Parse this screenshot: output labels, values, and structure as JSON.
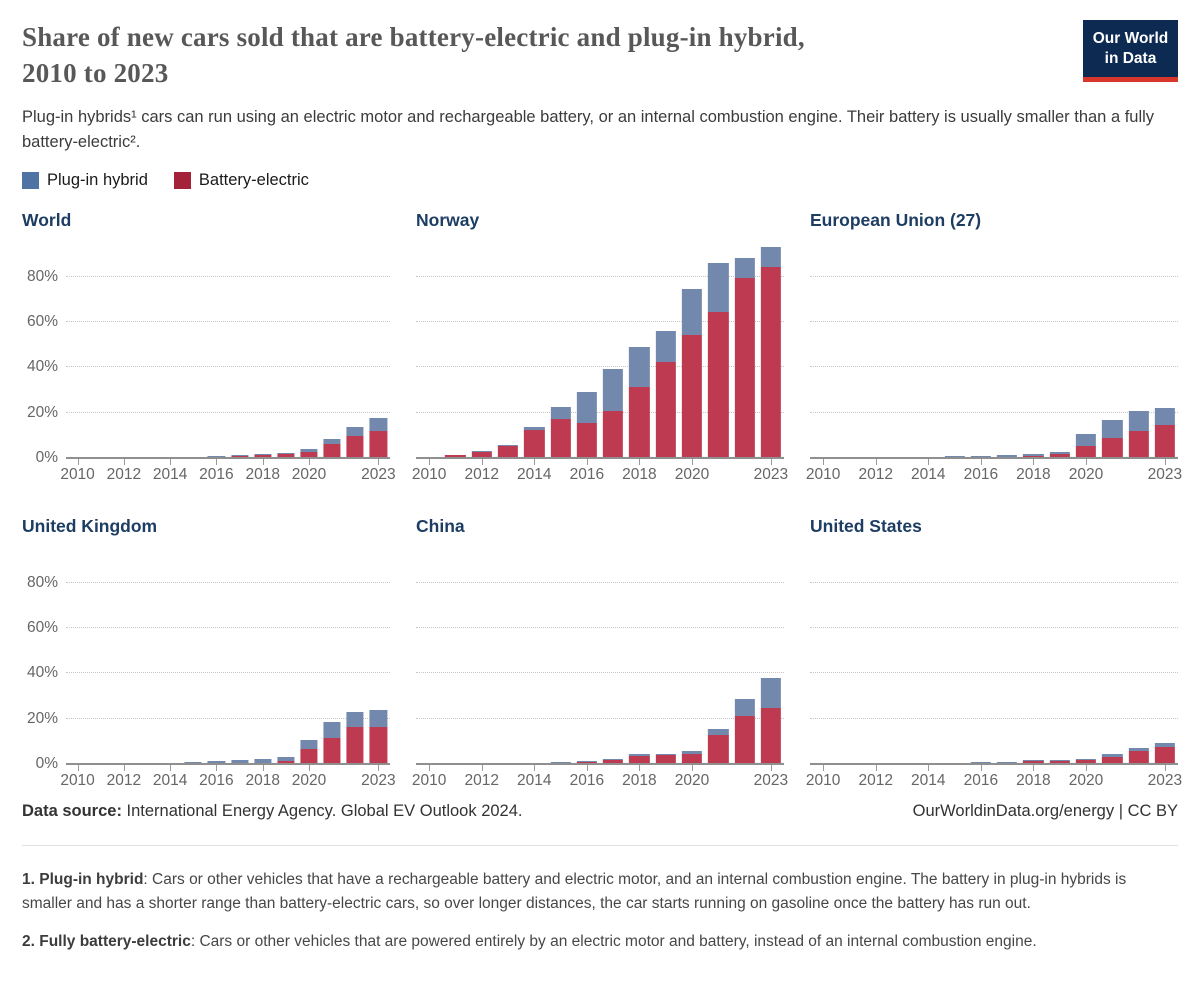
{
  "page": {
    "title_line1": "Share of new cars sold that are battery-electric and plug-in hybrid,",
    "title_line2": "2010 to 2023",
    "subtitle": "Plug-in hybrids¹ cars can run using an electric motor and rechargeable battery, or an internal combustion engine. Their battery is usually smaller than a fully battery-electric².",
    "logo_line1": "Our World",
    "logo_line2": "in Data"
  },
  "colors": {
    "brand_navy": "#0c2a52",
    "logo_red": "#d8352b",
    "chart_title_navy": "#1d3d63",
    "plug_in_hybrid_legend": "#4f74a3",
    "battery_electric_legend": "#a42239",
    "plug_in_hybrid_bar": "#7288ac",
    "battery_electric_bar": "#bd3a50"
  },
  "legend": [
    {
      "label": "Plug-in hybrid",
      "color": "#4f74a3"
    },
    {
      "label": "Battery-electric",
      "color": "#a42239"
    }
  ],
  "chart_data": [
    {
      "type": "bar",
      "stacked": true,
      "title": "World",
      "show_y_labels": true,
      "ylim": [
        0,
        96
      ],
      "yticks": [
        0,
        20,
        40,
        60,
        80
      ],
      "xticks": [
        2010,
        2012,
        2014,
        2016,
        2018,
        2020,
        2023
      ],
      "categories": [
        2010,
        2011,
        2012,
        2013,
        2014,
        2015,
        2016,
        2017,
        2018,
        2019,
        2020,
        2021,
        2022,
        2023
      ],
      "series": [
        {
          "name": "Battery-electric",
          "color": "#bd3a50",
          "values": [
            0.0,
            0.1,
            0.1,
            0.2,
            0.3,
            0.4,
            0.6,
            0.9,
            1.5,
            1.7,
            2.9,
            6.3,
            9.9,
            12.1
          ]
        },
        {
          "name": "Plug-in hybrid",
          "color": "#7288ac",
          "values": [
            0.0,
            0.0,
            0.1,
            0.1,
            0.2,
            0.3,
            0.3,
            0.4,
            0.6,
            0.5,
            1.3,
            2.4,
            3.9,
            5.6
          ]
        }
      ]
    },
    {
      "type": "bar",
      "stacked": true,
      "title": "Norway",
      "show_y_labels": false,
      "ylim": [
        0,
        96
      ],
      "yticks": [
        0,
        20,
        40,
        60,
        80
      ],
      "xticks": [
        2010,
        2012,
        2014,
        2016,
        2018,
        2020,
        2023
      ],
      "categories": [
        2010,
        2011,
        2012,
        2013,
        2014,
        2015,
        2016,
        2017,
        2018,
        2019,
        2020,
        2021,
        2022,
        2023
      ],
      "series": [
        {
          "name": "Battery-electric",
          "color": "#bd3a50",
          "values": [
            0.3,
            1.3,
            3.0,
            5.5,
            12.5,
            17.1,
            15.7,
            20.8,
            31.2,
            42.4,
            54.1,
            64.5,
            79.2,
            84.3
          ]
        },
        {
          "name": "Plug-in hybrid",
          "color": "#7288ac",
          "values": [
            0.0,
            0.1,
            0.3,
            0.4,
            1.4,
            5.3,
            13.4,
            18.4,
            17.9,
            13.5,
            20.4,
            21.7,
            8.9,
            8.8
          ]
        }
      ]
    },
    {
      "type": "bar",
      "stacked": true,
      "title": "European Union (27)",
      "show_y_labels": false,
      "ylim": [
        0,
        96
      ],
      "yticks": [
        0,
        20,
        40,
        60,
        80
      ],
      "xticks": [
        2010,
        2012,
        2014,
        2016,
        2018,
        2020,
        2023
      ],
      "categories": [
        2010,
        2011,
        2012,
        2013,
        2014,
        2015,
        2016,
        2017,
        2018,
        2019,
        2020,
        2021,
        2022,
        2023
      ],
      "series": [
        {
          "name": "Battery-electric",
          "color": "#bd3a50",
          "values": [
            0.0,
            0.1,
            0.2,
            0.3,
            0.4,
            0.5,
            0.4,
            0.7,
            1.0,
            1.9,
            5.4,
            9.1,
            12.1,
            14.6
          ]
        },
        {
          "name": "Plug-in hybrid",
          "color": "#7288ac",
          "values": [
            0.0,
            0.0,
            0.1,
            0.2,
            0.2,
            0.5,
            0.5,
            0.6,
            0.7,
            1.1,
            5.1,
            8.0,
            8.7,
            7.7
          ]
        }
      ]
    },
    {
      "type": "bar",
      "stacked": true,
      "title": "United Kingdom",
      "show_y_labels": true,
      "ylim": [
        0,
        96
      ],
      "yticks": [
        0,
        20,
        40,
        60,
        80
      ],
      "xticks": [
        2010,
        2012,
        2014,
        2016,
        2018,
        2020,
        2023
      ],
      "categories": [
        2010,
        2011,
        2012,
        2013,
        2014,
        2015,
        2016,
        2017,
        2018,
        2019,
        2020,
        2021,
        2022,
        2023
      ],
      "series": [
        {
          "name": "Battery-electric",
          "color": "#bd3a50",
          "values": [
            0.0,
            0.1,
            0.1,
            0.2,
            0.3,
            0.4,
            0.4,
            0.5,
            0.7,
            1.6,
            6.6,
            11.6,
            16.6,
            16.5
          ]
        },
        {
          "name": "Plug-in hybrid",
          "color": "#7288ac",
          "values": [
            0.0,
            0.0,
            0.1,
            0.1,
            0.4,
            0.7,
            1.0,
            1.4,
            1.8,
            1.6,
            4.1,
            7.0,
            6.3,
            7.4
          ]
        }
      ]
    },
    {
      "type": "bar",
      "stacked": true,
      "title": "China",
      "show_y_labels": false,
      "ylim": [
        0,
        96
      ],
      "yticks": [
        0,
        20,
        40,
        60,
        80
      ],
      "xticks": [
        2010,
        2012,
        2014,
        2016,
        2018,
        2020,
        2023
      ],
      "categories": [
        2010,
        2011,
        2012,
        2013,
        2014,
        2015,
        2016,
        2017,
        2018,
        2019,
        2020,
        2021,
        2022,
        2023
      ],
      "series": [
        {
          "name": "Battery-electric",
          "color": "#bd3a50",
          "values": [
            0.0,
            0.1,
            0.1,
            0.1,
            0.3,
            0.8,
            1.2,
            1.8,
            3.5,
            3.9,
            4.7,
            13.0,
            21.5,
            24.9
          ]
        },
        {
          "name": "Plug-in hybrid",
          "color": "#7288ac",
          "values": [
            0.0,
            0.0,
            0.0,
            0.0,
            0.1,
            0.3,
            0.3,
            0.4,
            0.9,
            0.8,
            1.0,
            2.6,
            7.3,
            13.1
          ]
        }
      ]
    },
    {
      "type": "bar",
      "stacked": true,
      "title": "United States",
      "show_y_labels": false,
      "ylim": [
        0,
        96
      ],
      "yticks": [
        0,
        20,
        40,
        60,
        80
      ],
      "xticks": [
        2010,
        2012,
        2014,
        2016,
        2018,
        2020,
        2023
      ],
      "categories": [
        2010,
        2011,
        2012,
        2013,
        2014,
        2015,
        2016,
        2017,
        2018,
        2019,
        2020,
        2021,
        2022,
        2023
      ],
      "series": [
        {
          "name": "Battery-electric",
          "color": "#bd3a50",
          "values": [
            0.0,
            0.1,
            0.1,
            0.3,
            0.4,
            0.4,
            0.5,
            0.7,
            1.3,
            1.4,
            1.7,
            3.2,
            5.7,
            7.6
          ]
        },
        {
          "name": "Plug-in hybrid",
          "color": "#7288ac",
          "values": [
            0.0,
            0.1,
            0.3,
            0.4,
            0.3,
            0.3,
            0.4,
            0.5,
            0.7,
            0.5,
            0.5,
            1.2,
            1.4,
            1.9
          ]
        }
      ]
    }
  ],
  "footer": {
    "source_label": "Data source:",
    "source_text": " International Energy Agency. Global EV Outlook 2024.",
    "rights": "OurWorldinData.org/energy | CC BY"
  },
  "footnotes": [
    {
      "term": "1. Plug-in hybrid",
      "text": ": Cars or other vehicles that have a rechargeable battery and electric motor, and an internal combustion engine. The battery in plug-in hybrids is smaller and has a shorter range than battery-electric cars, so over longer distances, the car starts running on gasoline once the battery has run out."
    },
    {
      "term": "2. Fully battery-electric",
      "text": ": Cars or other vehicles that are powered entirely by an electric motor and battery, instead of an internal combustion engine."
    }
  ]
}
